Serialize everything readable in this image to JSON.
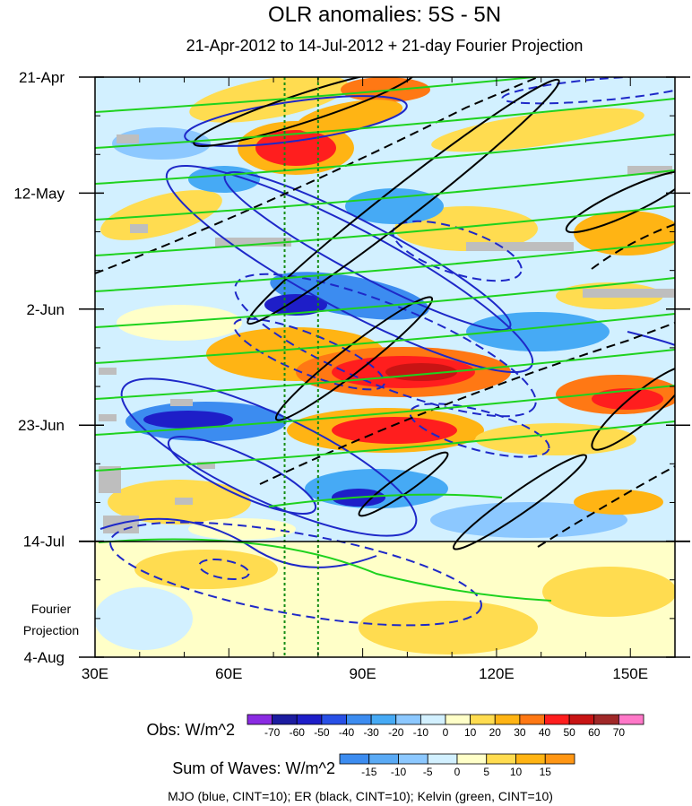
{
  "chart_data": {
    "type": "heatmap",
    "title": "OLR anomalies: 5S - 5N",
    "subtitle": "21-Apr-2012 to 14-Jul-2012 + 21-day Fourier Projection",
    "x_ticks": [
      "30E",
      "60E",
      "90E",
      "120E",
      "150E"
    ],
    "x_tick_values": [
      30,
      60,
      90,
      120,
      150
    ],
    "xlim": [
      30,
      160
    ],
    "y_ticks": [
      "21-Apr",
      "12-May",
      "2-Jun",
      "23-Jun",
      "14-Jul",
      "4-Aug"
    ],
    "projection_label": [
      "Fourier",
      "Projection"
    ],
    "reference_lines_lon": [
      72.5,
      80
    ],
    "colorbar_obs": {
      "label": "Obs: W/m^2",
      "ticks": [
        "-70",
        "-60",
        "-50",
        "-40",
        "-30",
        "-20",
        "-10",
        "0",
        "10",
        "20",
        "30",
        "40",
        "50",
        "60",
        "70"
      ],
      "colors": [
        "#8a2be2",
        "#1c1ca0",
        "#1e1ec8",
        "#2850e6",
        "#3c8cf0",
        "#46aaf5",
        "#8cc8ff",
        "#d2f0ff",
        "#ffffc8",
        "#ffdc50",
        "#ffb414",
        "#ff7814",
        "#ff1e1e",
        "#c81414",
        "#a02828",
        "#ff78c8"
      ]
    },
    "colorbar_waves": {
      "label": "Sum of Waves: W/m^2",
      "ticks": [
        "-15",
        "-10",
        "-5",
        "0",
        "5",
        "10",
        "15"
      ],
      "colors": [
        "#3c8cf0",
        "#5aaaf5",
        "#8cc8ff",
        "#d2f0ff",
        "#ffffc8",
        "#ffdc50",
        "#ffb414",
        "#ff9614"
      ]
    },
    "legend": "MJO (blue, CINT=10); ER (black, CINT=10); Kelvin (green, CINT=10)",
    "series_colors": {
      "mjo": "#1e28c8",
      "er": "#000000",
      "kelvin": "#1ed21e"
    }
  }
}
